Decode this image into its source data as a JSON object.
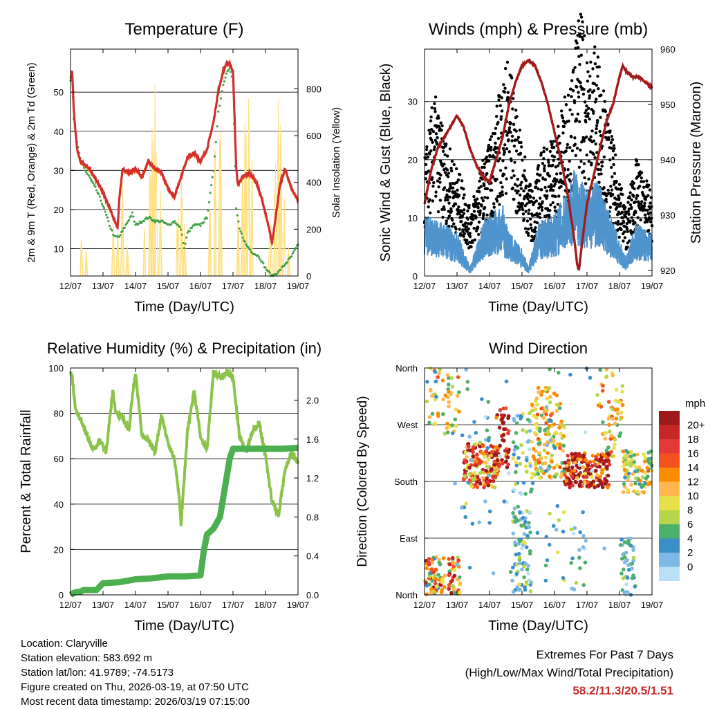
{
  "colors": {
    "temp2m": "#d32f2f",
    "temp9m": "#f57c00",
    "dewpoint": "#43a047",
    "solar": "#ffe082",
    "wind": "#4f94cd",
    "gust": "#000000",
    "pressure": "#a31a1a",
    "rh": "#8bc34a",
    "precip": "#4caf50",
    "extremes": "#c62828"
  },
  "time_ticks": [
    "12/07",
    "13/07",
    "14/07",
    "15/07",
    "16/07",
    "17/07",
    "18/07",
    "19/07"
  ],
  "chart_data": [
    {
      "id": "temperature",
      "type": "line",
      "title": "Temperature (F)",
      "xlabel": "Time (Day/UTC)",
      "ylabel": "2m & 9m T (Red, Orange) & 2m Td (Green)",
      "y2label": "Solar Insolation (Yellow)",
      "xlim": [
        0,
        7
      ],
      "ylim": [
        3,
        61
      ],
      "y2lim": [
        0,
        970
      ],
      "yticks": [
        10,
        20,
        30,
        40,
        50
      ],
      "y2ticks": [
        0,
        200,
        400,
        600,
        800
      ],
      "series": [
        {
          "name": "2m T",
          "x": [
            0,
            0.05,
            0.1,
            0.2,
            0.3,
            0.45,
            0.6,
            0.8,
            1.0,
            1.2,
            1.35,
            1.45,
            1.5,
            1.6,
            1.8,
            2.0,
            2.2,
            2.4,
            2.6,
            2.8,
            3.0,
            3.2,
            3.4,
            3.6,
            3.8,
            4.0,
            4.2,
            4.4,
            4.55,
            4.7,
            4.8,
            4.9,
            5.0,
            5.1,
            5.15,
            5.3,
            5.5,
            5.7,
            5.9,
            6.1,
            6.2,
            6.3,
            6.45,
            6.6,
            6.8,
            7.0
          ],
          "y": [
            53,
            55,
            45,
            35,
            32,
            31,
            30,
            27,
            24,
            20,
            17,
            15,
            22,
            30,
            29,
            30,
            28,
            32,
            30,
            29,
            25,
            23,
            28,
            33,
            34,
            32,
            35,
            42,
            50,
            55,
            57,
            57,
            55,
            30,
            26,
            28,
            29,
            27,
            22,
            15,
            11,
            17,
            26,
            30,
            25,
            22
          ]
        },
        {
          "name": "2m Td",
          "x": [
            0,
            0.05,
            0.1,
            0.2,
            0.3,
            0.45,
            0.6,
            0.8,
            1.0,
            1.2,
            1.35,
            1.5,
            1.7,
            1.9,
            2.0,
            2.2,
            2.4,
            2.6,
            2.8,
            3.0,
            3.2,
            3.4,
            3.5,
            3.6,
            3.8,
            4.0,
            4.2,
            4.4,
            4.55,
            4.7,
            4.8,
            4.9,
            5.0,
            5.1,
            5.2,
            5.4,
            5.6,
            5.8,
            6.0,
            6.2,
            6.4,
            6.6,
            6.8,
            7.0
          ],
          "y": [
            53,
            54,
            43,
            37,
            33,
            30,
            28,
            25,
            21,
            16,
            13,
            13,
            16,
            19,
            16,
            17,
            18,
            17,
            17,
            16,
            17,
            15,
            10,
            14,
            16,
            16,
            18,
            30,
            45,
            52,
            55,
            56,
            53,
            20,
            15,
            11,
            9,
            8,
            5,
            3,
            4,
            6,
            8,
            11
          ]
        },
        {
          "name": "Solar Insolation",
          "axis": "y2",
          "peaks": [
            {
              "x": 0.35,
              "h": 160
            },
            {
              "x": 0.48,
              "h": 120
            },
            {
              "x": 1.3,
              "h": 260
            },
            {
              "x": 1.45,
              "h": 200
            },
            {
              "x": 1.6,
              "h": 450
            },
            {
              "x": 1.75,
              "h": 150
            },
            {
              "x": 2.28,
              "h": 250
            },
            {
              "x": 2.45,
              "h": 500
            },
            {
              "x": 2.52,
              "h": 760
            },
            {
              "x": 2.62,
              "h": 820
            },
            {
              "x": 2.75,
              "h": 380
            },
            {
              "x": 3.3,
              "h": 280
            },
            {
              "x": 3.42,
              "h": 420
            },
            {
              "x": 3.5,
              "h": 230
            },
            {
              "x": 4.3,
              "h": 320
            },
            {
              "x": 4.45,
              "h": 560
            },
            {
              "x": 4.6,
              "h": 650
            },
            {
              "x": 5.15,
              "h": 300
            },
            {
              "x": 5.3,
              "h": 430
            },
            {
              "x": 5.38,
              "h": 760
            },
            {
              "x": 5.48,
              "h": 920
            },
            {
              "x": 5.6,
              "h": 560
            },
            {
              "x": 6.15,
              "h": 230
            },
            {
              "x": 6.3,
              "h": 540
            },
            {
              "x": 6.4,
              "h": 780
            },
            {
              "x": 6.48,
              "h": 700
            },
            {
              "x": 6.6,
              "h": 340
            },
            {
              "x": 6.7,
              "h": 150
            }
          ]
        }
      ]
    },
    {
      "id": "winds",
      "type": "line",
      "title": "Winds (mph) & Pressure (mb)",
      "xlabel": "Time (Day/UTC)",
      "ylabel": "Sonic Wind & Gust (Blue, Black)",
      "y2label": "Station Pressure (Maroon)",
      "xlim": [
        0,
        7
      ],
      "ylim": [
        0,
        39
      ],
      "y2lim": [
        919,
        960
      ],
      "yticks": [
        0,
        10,
        20,
        30
      ],
      "y2ticks": [
        920,
        930,
        940,
        950,
        960
      ],
      "series": [
        {
          "name": "Station Pressure",
          "axis": "y2",
          "x": [
            0,
            0.2,
            0.4,
            0.6,
            0.8,
            1.0,
            1.2,
            1.4,
            1.6,
            1.8,
            2.0,
            2.2,
            2.4,
            2.6,
            2.8,
            3.0,
            3.2,
            3.4,
            3.6,
            3.8,
            4.0,
            4.2,
            4.4,
            4.5,
            4.6,
            4.7,
            4.75,
            4.85,
            5.0,
            5.2,
            5.4,
            5.6,
            5.8,
            6.0,
            6.1,
            6.2,
            6.4,
            6.6,
            6.8,
            7.0
          ],
          "y": [
            932,
            938,
            942,
            944,
            946,
            948,
            946,
            942,
            939,
            937,
            936,
            940,
            944,
            950,
            954,
            957,
            958,
            957,
            954,
            950,
            945,
            940,
            934,
            930,
            926,
            921,
            920,
            925,
            932,
            937,
            942,
            947,
            950,
            955,
            957,
            956,
            955,
            955,
            954,
            953
          ]
        },
        {
          "name": "Sonic Wind",
          "x": [
            0,
            0.5,
            1.0,
            1.2,
            1.4,
            1.8,
            2.0,
            2.4,
            2.6,
            3.0,
            3.2,
            3.5,
            4.0,
            4.3,
            4.6,
            5.0,
            5.3,
            5.6,
            6.0,
            6.2,
            6.5,
            7.0
          ],
          "y": [
            7,
            6,
            5,
            3,
            1,
            6,
            7,
            8,
            5,
            3,
            1,
            6,
            7,
            9,
            12,
            10,
            11,
            8,
            4,
            2,
            6,
            5
          ]
        },
        {
          "name": "Gust",
          "x": [
            0,
            0.3,
            0.6,
            1.0,
            1.2,
            1.4,
            1.8,
            2.0,
            2.3,
            2.6,
            2.8,
            3.0,
            3.3,
            3.6,
            4.0,
            4.3,
            4.6,
            4.8,
            5.0,
            5.3,
            5.6,
            6.0,
            6.2,
            6.5,
            7.0
          ],
          "y": [
            14,
            22,
            17,
            13,
            11,
            8,
            14,
            16,
            22,
            27,
            20,
            16,
            10,
            15,
            17,
            21,
            26,
            34,
            26,
            28,
            20,
            12,
            8,
            14,
            10
          ]
        }
      ]
    },
    {
      "id": "humidity",
      "type": "line",
      "title": "Relative Humidity (%) & Precipitation (in)",
      "xlabel": "Time (Day/UTC)",
      "ylabel": "Percent & Total Rainfall",
      "xlim": [
        0,
        7
      ],
      "ylim": [
        0,
        100
      ],
      "y2lim": [
        0,
        2.33
      ],
      "yticks": [
        0,
        20,
        40,
        60,
        80,
        100
      ],
      "y2ticks": [
        0.0,
        0.4,
        0.8,
        1.2,
        1.6,
        2.0
      ],
      "series": [
        {
          "name": "Relative Humidity",
          "x": [
            0,
            0.05,
            0.15,
            0.3,
            0.5,
            0.7,
            0.9,
            1.1,
            1.3,
            1.4,
            1.6,
            1.8,
            1.9,
            2.0,
            2.2,
            2.4,
            2.6,
            2.8,
            3.0,
            3.2,
            3.35,
            3.4,
            3.6,
            3.8,
            4.0,
            4.2,
            4.4,
            4.6,
            4.8,
            5.0,
            5.2,
            5.4,
            5.6,
            5.8,
            6.0,
            6.2,
            6.4,
            6.6,
            6.8,
            7.0
          ],
          "y": [
            98,
            96,
            82,
            78,
            70,
            64,
            68,
            63,
            90,
            80,
            78,
            72,
            88,
            98,
            70,
            68,
            63,
            79,
            67,
            60,
            43,
            31,
            72,
            90,
            70,
            64,
            98,
            96,
            98,
            96,
            70,
            63,
            72,
            76,
            62,
            41,
            35,
            55,
            63,
            58
          ]
        },
        {
          "name": "Total Precipitation",
          "axis": "y2",
          "x": [
            0,
            0.1,
            0.2,
            0.3,
            0.4,
            0.8,
            1.0,
            1.5,
            2.0,
            2.5,
            3.0,
            3.5,
            4.0,
            4.1,
            4.2,
            4.4,
            4.6,
            4.8,
            4.9,
            5.0,
            5.5,
            6.0,
            6.5,
            7.0
          ],
          "y": [
            0.0,
            0.02,
            0.03,
            0.03,
            0.05,
            0.05,
            0.12,
            0.13,
            0.16,
            0.17,
            0.19,
            0.19,
            0.2,
            0.45,
            0.62,
            0.68,
            0.8,
            1.2,
            1.4,
            1.5,
            1.5,
            1.5,
            1.5,
            1.51
          ]
        }
      ]
    },
    {
      "id": "direction",
      "type": "scatter",
      "title": "Wind Direction",
      "xlabel": "Time (Day/UTC)",
      "ylabel": "Direction (Colored By Speed)",
      "xlim": [
        0,
        7
      ],
      "ylim": [
        0,
        360
      ],
      "yticks": [
        {
          "value": 0,
          "label": "North"
        },
        {
          "value": 90,
          "label": "East"
        },
        {
          "value": 180,
          "label": "South"
        },
        {
          "value": 270,
          "label": "West"
        },
        {
          "value": 360,
          "label": "North"
        }
      ],
      "clusters": [
        {
          "x0": 0.0,
          "x1": 1.1,
          "y0": 0,
          "y1": 60,
          "n": 110,
          "s0": 2,
          "s1": 11
        },
        {
          "x0": 0.0,
          "x1": 1.1,
          "y0": 255,
          "y1": 360,
          "n": 55,
          "s0": 2,
          "s1": 8
        },
        {
          "x0": 1.2,
          "x1": 2.3,
          "y0": 170,
          "y1": 240,
          "n": 170,
          "s0": 4,
          "s1": 12
        },
        {
          "x0": 2.2,
          "x1": 2.6,
          "y0": 200,
          "y1": 300,
          "n": 50,
          "s0": 7,
          "s1": 13
        },
        {
          "x0": 1.0,
          "x1": 2.2,
          "y0": 110,
          "y1": 360,
          "n": 25,
          "s0": 1,
          "s1": 5
        },
        {
          "x0": 2.7,
          "x1": 3.3,
          "y0": 0,
          "y1": 140,
          "n": 80,
          "s0": 0,
          "s1": 5
        },
        {
          "x0": 2.7,
          "x1": 3.3,
          "y0": 160,
          "y1": 290,
          "n": 45,
          "s0": 0,
          "s1": 5
        },
        {
          "x0": 3.3,
          "x1": 4.3,
          "y0": 185,
          "y1": 330,
          "n": 140,
          "s0": 3,
          "s1": 8
        },
        {
          "x0": 3.7,
          "x1": 4.3,
          "y0": 0,
          "y1": 360,
          "n": 30,
          "s0": 1,
          "s1": 5
        },
        {
          "x0": 4.3,
          "x1": 5.7,
          "y0": 170,
          "y1": 225,
          "n": 190,
          "s0": 5,
          "s1": 17
        },
        {
          "x0": 5.3,
          "x1": 6.1,
          "y0": 220,
          "y1": 360,
          "n": 60,
          "s0": 3,
          "s1": 8
        },
        {
          "x0": 6.0,
          "x1": 6.5,
          "y0": 0,
          "y1": 90,
          "n": 45,
          "s0": 0,
          "s1": 4
        },
        {
          "x0": 6.1,
          "x1": 7.0,
          "y0": 160,
          "y1": 230,
          "n": 90,
          "s0": 2,
          "s1": 8
        },
        {
          "x0": 4.5,
          "x1": 5.0,
          "y0": 0,
          "y1": 110,
          "n": 18,
          "s0": 0,
          "s1": 4
        },
        {
          "x0": 0.9,
          "x1": 7.0,
          "y0": 0,
          "y1": 360,
          "n": 45,
          "s0": 0,
          "s1": 4
        }
      ],
      "legend": {
        "title": "mph",
        "labels": [
          "20+",
          "18",
          "16",
          "14",
          "12",
          "10",
          "8",
          "6",
          "4",
          "2",
          "0"
        ],
        "colors": [
          "#9e1a1a",
          "#c62828",
          "#e53935",
          "#f4511e",
          "#fb8c00",
          "#ffb74d",
          "#e8e04a",
          "#b5d64a",
          "#4caf6a",
          "#3a8fc8",
          "#7db8e6",
          "#b9e0f7"
        ]
      }
    }
  ],
  "footer": {
    "location": "Location: Claryville",
    "elevation": "Station elevation: 583.692 m",
    "latlon": "Station lat/lon: 41.9789; -74.5173",
    "created": "Figure created on Thu, 2026-03-19, at 07:50 UTC",
    "latest": "Most recent data timestamp: 2026/03/19 07:15:00"
  },
  "extremes": {
    "title": "Extremes For Past 7 Days",
    "subtitle": "(High/Low/Max Wind/Total Precipitation)",
    "values": "58.2/11.3/20.5/1.51"
  }
}
